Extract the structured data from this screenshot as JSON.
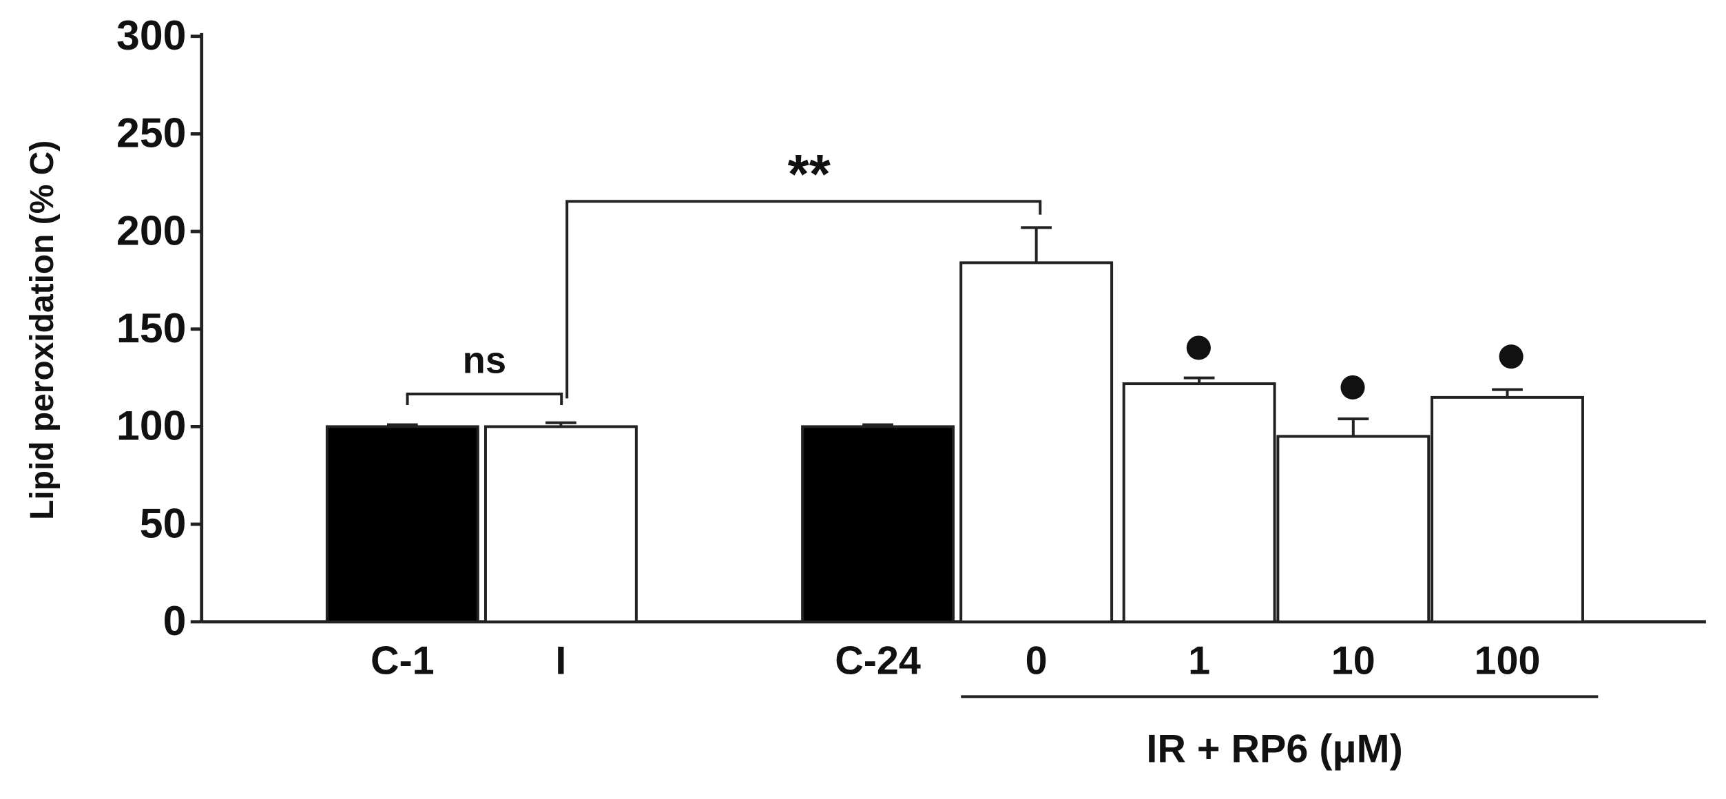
{
  "chart_data": {
    "type": "bar",
    "ylabel": "Lipid peroxidation (% C)",
    "categories": [
      "C-1",
      "I",
      "C-24",
      "0",
      "1",
      "10",
      "100"
    ],
    "values": [
      100,
      100,
      100,
      184,
      122,
      95,
      115
    ],
    "errors": [
      1,
      2,
      1,
      18,
      3,
      9,
      4
    ],
    "colors": [
      "#000000",
      "#ffffff",
      "#000000",
      "#ffffff",
      "#ffffff",
      "#ffffff",
      "#ffffff"
    ],
    "ylim": [
      0,
      300
    ],
    "yticks": [
      0,
      50,
      100,
      150,
      200,
      250,
      300
    ],
    "group_label": "IR + RP6 (μM)",
    "annotations": [
      "ns",
      "**"
    ]
  }
}
